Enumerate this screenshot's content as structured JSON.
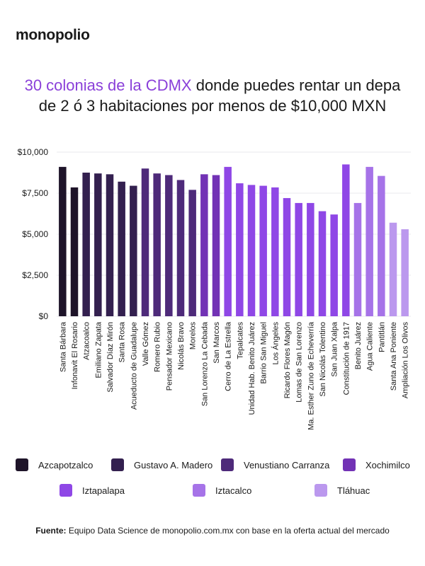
{
  "brand": {
    "logo_text": "monopolio"
  },
  "heading": {
    "accent_text": "30 colonias de la CDMX",
    "rest_line1": " donde puedes rentar un depa",
    "line2": "de 2 ó 3 habitaciones por menos de $10,000 MXN"
  },
  "footer": {
    "label": "Fuente:",
    "text": " Equipo Data Science de monopolio.com.mx con base en la oferta actual del mercado"
  },
  "colors": {
    "Azcapotzalco": "#1e1429",
    "Gustavo A. Madero": "#33204f",
    "Venustiano Carranza": "#4e2a7a",
    "Xochimilco": "#7232b5",
    "Iztapalapa": "#8f47e6",
    "Iztacalco": "#a673e8",
    "Tláhuac": "#bb98ee"
  },
  "chart_data": {
    "type": "bar",
    "ylim": [
      0,
      10000
    ],
    "yticks": [
      0,
      2500,
      5000,
      7500,
      10000
    ],
    "ytick_labels": [
      "$0",
      "$2,500",
      "$5,000",
      "$7,500",
      "$10,000"
    ],
    "grid": true,
    "legend_position": "bottom",
    "legend": [
      "Azcapotzalco",
      "Gustavo A. Madero",
      "Venustiano Carranza",
      "Xochimilco",
      "Iztapalapa",
      "Iztacalco",
      "Tláhuac"
    ],
    "categories": [
      "Santa Bárbara",
      "Infonavit El Rosario",
      "Atzacoalco",
      "Emiliano Zapata",
      "Salvador Díaz Mirón",
      "Santa Rosa",
      "Acueducto de Guadalupe",
      "Valle Gómez",
      "Romero Rubio",
      "Pensador Mexicano",
      "Nicolás Bravo",
      "Morelos",
      "San Lorenzo La Cebada",
      "San Marcos",
      "Cerro de La Estrella",
      "Tepalcates",
      "Unidad Hab. Benito Juárez",
      "Barrio San Miguel",
      "Los Ángeles",
      "Ricardo Flores Magón",
      "Lomas de San Lorenzo",
      "Ma. Esther Zuno de Echeverría",
      "San Nicolás Tolentino",
      "San Juan Xalpa",
      "Constitución de 1917",
      "Benito Juárez",
      "Agua Caliente",
      "Pantitlán",
      "Santa Ana Poniente",
      "Ampliación Los Olivos"
    ],
    "values": [
      9100,
      7850,
      8750,
      8700,
      8650,
      8200,
      7950,
      9000,
      8700,
      8600,
      8300,
      7700,
      8650,
      8600,
      9100,
      8100,
      8000,
      7950,
      7850,
      7200,
      6900,
      6900,
      6400,
      6200,
      9250,
      6900,
      9100,
      8550,
      5700,
      5300
    ],
    "groups": [
      "Azcapotzalco",
      "Azcapotzalco",
      "Gustavo A. Madero",
      "Gustavo A. Madero",
      "Gustavo A. Madero",
      "Gustavo A. Madero",
      "Gustavo A. Madero",
      "Venustiano Carranza",
      "Venustiano Carranza",
      "Venustiano Carranza",
      "Venustiano Carranza",
      "Venustiano Carranza",
      "Xochimilco",
      "Xochimilco",
      "Iztapalapa",
      "Iztapalapa",
      "Iztapalapa",
      "Iztapalapa",
      "Iztapalapa",
      "Iztapalapa",
      "Iztapalapa",
      "Iztapalapa",
      "Iztapalapa",
      "Iztapalapa",
      "Iztapalapa",
      "Iztacalco",
      "Iztacalco",
      "Iztacalco",
      "Tláhuac",
      "Tláhuac"
    ]
  }
}
